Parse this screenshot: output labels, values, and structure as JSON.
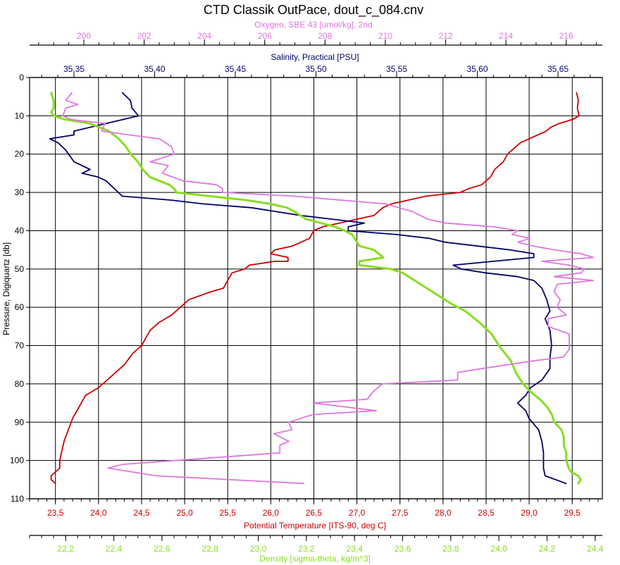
{
  "chart_data": {
    "type": "line",
    "title": "CTD Classik OutPace, dout_c_084.cnv",
    "grid": true,
    "y_axis": {
      "label": "Pressure, Digiquartz [db]",
      "range": [
        0,
        110
      ],
      "inverted": true,
      "ticks": [
        "0",
        "10",
        "20",
        "30",
        "40",
        "50",
        "60",
        "70",
        "80",
        "90",
        "100",
        "110"
      ]
    },
    "axes": {
      "oxygen": {
        "label": "Oxygen, SBE 43 [umol/kg], 2nd",
        "position": "top",
        "range": [
          198.2,
          217.2
        ],
        "ticks": [
          "200",
          "202",
          "204",
          "206",
          "208",
          "210",
          "212",
          "214",
          "216"
        ],
        "color": "#dd77dd"
      },
      "salinity": {
        "label": "Salinity, Practical [PSU]",
        "position": "top",
        "range": [
          35.3225,
          35.6775
        ],
        "ticks": [
          "35,35",
          "35,40",
          "35,45",
          "35,50",
          "35,55",
          "35,60",
          "35,65"
        ],
        "color": "#000066"
      },
      "temperature": {
        "label": "Potential Temperature [ITS-90, deg C]",
        "position": "bottom",
        "range": [
          23.2,
          29.85
        ],
        "ticks": [
          "23,5",
          "24,0",
          "24,5",
          "25,0",
          "25,5",
          "26,0",
          "26,5",
          "27,0",
          "27,5",
          "28,0",
          "28,5",
          "29,0",
          "29,5"
        ],
        "color": "#cc0000"
      },
      "density": {
        "label": "Density [sigma-theta, kg/m^3]",
        "position": "bottom",
        "range": [
          22.05,
          24.43
        ],
        "ticks": [
          "22,2",
          "22,4",
          "22,6",
          "22,8",
          "23,0",
          "23,2",
          "23,4",
          "23,6",
          "23,8",
          "24,0",
          "24,2",
          "24,4"
        ],
        "color": "#88dd22"
      }
    },
    "series": [
      {
        "name": "Potential Temperature",
        "axis": "temperature",
        "color": "#cc0000",
        "points": [
          [
            29.55,
            4
          ],
          [
            29.57,
            6
          ],
          [
            29.56,
            8
          ],
          [
            29.58,
            10
          ],
          [
            29.5,
            11
          ],
          [
            29.35,
            12
          ],
          [
            29.25,
            13
          ],
          [
            29.2,
            14
          ],
          [
            28.9,
            17
          ],
          [
            28.75,
            20
          ],
          [
            28.7,
            22
          ],
          [
            28.6,
            24
          ],
          [
            28.55,
            26
          ],
          [
            28.45,
            28
          ],
          [
            28.3,
            29
          ],
          [
            28.2,
            30
          ],
          [
            27.8,
            31
          ],
          [
            27.6,
            32
          ],
          [
            27.4,
            33
          ],
          [
            27.3,
            34
          ],
          [
            27.25,
            35
          ],
          [
            27.2,
            36
          ],
          [
            27.0,
            37
          ],
          [
            26.8,
            38
          ],
          [
            26.6,
            39
          ],
          [
            26.5,
            40
          ],
          [
            26.45,
            42
          ],
          [
            26.35,
            43
          ],
          [
            26.25,
            44
          ],
          [
            26.05,
            45
          ],
          [
            26.0,
            46
          ],
          [
            26.2,
            47
          ],
          [
            26.2,
            48
          ],
          [
            26.05,
            48
          ],
          [
            25.75,
            49
          ],
          [
            25.7,
            50
          ],
          [
            25.55,
            51
          ],
          [
            25.5,
            53
          ],
          [
            25.45,
            55
          ],
          [
            25.3,
            56
          ],
          [
            25.05,
            58
          ],
          [
            24.95,
            60
          ],
          [
            24.85,
            62
          ],
          [
            24.7,
            64
          ],
          [
            24.6,
            66
          ],
          [
            24.55,
            68
          ],
          [
            24.5,
            70
          ],
          [
            24.4,
            72
          ],
          [
            24.3,
            75
          ],
          [
            24.2,
            77
          ],
          [
            24.1,
            79
          ],
          [
            24.0,
            81
          ],
          [
            23.85,
            83
          ],
          [
            23.8,
            85
          ],
          [
            23.75,
            87
          ],
          [
            23.7,
            89
          ],
          [
            23.65,
            92
          ],
          [
            23.6,
            95
          ],
          [
            23.55,
            100
          ],
          [
            23.55,
            102
          ],
          [
            23.45,
            104
          ],
          [
            23.45,
            105
          ],
          [
            23.5,
            106
          ]
        ]
      },
      {
        "name": "Salinity",
        "axis": "salinity",
        "color": "#000066",
        "points": [
          [
            35.38,
            4
          ],
          [
            35.385,
            6
          ],
          [
            35.386,
            8
          ],
          [
            35.39,
            10
          ],
          [
            35.37,
            12
          ],
          [
            35.35,
            14
          ],
          [
            35.35,
            15
          ],
          [
            35.335,
            16
          ],
          [
            35.34,
            17
          ],
          [
            35.345,
            19
          ],
          [
            35.35,
            22
          ],
          [
            35.36,
            24
          ],
          [
            35.355,
            25
          ],
          [
            35.365,
            26
          ],
          [
            35.37,
            27
          ],
          [
            35.375,
            29
          ],
          [
            35.38,
            31
          ],
          [
            35.41,
            32
          ],
          [
            35.43,
            33
          ],
          [
            35.46,
            34
          ],
          [
            35.49,
            36
          ],
          [
            35.51,
            37
          ],
          [
            35.53,
            38
          ],
          [
            35.52,
            39
          ],
          [
            35.52,
            40
          ],
          [
            35.55,
            41
          ],
          [
            35.57,
            42
          ],
          [
            35.58,
            43
          ],
          [
            35.6,
            44
          ],
          [
            35.62,
            45
          ],
          [
            35.635,
            46
          ],
          [
            35.635,
            47
          ],
          [
            35.61,
            48
          ],
          [
            35.585,
            49
          ],
          [
            35.59,
            50
          ],
          [
            35.605,
            51
          ],
          [
            35.625,
            52
          ],
          [
            35.635,
            53
          ],
          [
            35.64,
            55
          ],
          [
            35.643,
            58
          ],
          [
            35.645,
            61
          ],
          [
            35.642,
            63
          ],
          [
            35.645,
            66
          ],
          [
            35.646,
            70
          ],
          [
            35.645,
            73
          ],
          [
            35.645,
            76
          ],
          [
            35.64,
            79
          ],
          [
            35.633,
            81
          ],
          [
            35.63,
            83
          ],
          [
            35.625,
            85
          ],
          [
            35.63,
            87
          ],
          [
            35.632,
            89
          ],
          [
            35.638,
            92
          ],
          [
            35.64,
            95
          ],
          [
            35.641,
            98
          ],
          [
            35.641,
            100
          ],
          [
            35.641,
            102
          ],
          [
            35.642,
            104
          ],
          [
            35.655,
            106
          ]
        ]
      },
      {
        "name": "Density",
        "axis": "density",
        "color": "#88dd22",
        "points": [
          [
            22.14,
            4
          ],
          [
            22.15,
            6
          ],
          [
            22.15,
            8
          ],
          [
            22.14,
            9
          ],
          [
            22.15,
            10
          ],
          [
            22.2,
            11
          ],
          [
            22.3,
            12
          ],
          [
            22.38,
            14
          ],
          [
            22.42,
            16
          ],
          [
            22.45,
            18
          ],
          [
            22.47,
            20
          ],
          [
            22.5,
            22
          ],
          [
            22.52,
            24
          ],
          [
            22.55,
            26
          ],
          [
            22.59,
            27
          ],
          [
            22.63,
            28
          ],
          [
            22.65,
            29
          ],
          [
            22.66,
            30
          ],
          [
            22.8,
            31
          ],
          [
            22.95,
            32
          ],
          [
            23.05,
            33
          ],
          [
            23.12,
            34
          ],
          [
            23.15,
            35
          ],
          [
            23.2,
            37
          ],
          [
            23.26,
            38
          ],
          [
            23.32,
            39
          ],
          [
            23.36,
            40
          ],
          [
            23.39,
            41
          ],
          [
            23.4,
            42
          ],
          [
            23.42,
            44
          ],
          [
            23.48,
            45
          ],
          [
            23.5,
            46
          ],
          [
            23.52,
            47
          ],
          [
            23.42,
            48
          ],
          [
            23.42,
            49
          ],
          [
            23.55,
            50
          ],
          [
            23.6,
            51
          ],
          [
            23.65,
            53
          ],
          [
            23.7,
            55
          ],
          [
            23.75,
            57
          ],
          [
            23.8,
            59
          ],
          [
            23.86,
            61
          ],
          [
            23.92,
            64
          ],
          [
            23.97,
            67
          ],
          [
            24.0,
            70
          ],
          [
            24.05,
            74
          ],
          [
            24.07,
            77
          ],
          [
            24.1,
            80
          ],
          [
            24.13,
            82
          ],
          [
            24.17,
            84
          ],
          [
            24.2,
            86
          ],
          [
            24.22,
            88
          ],
          [
            24.23,
            90
          ],
          [
            24.26,
            92
          ],
          [
            24.27,
            94
          ],
          [
            24.27,
            96
          ],
          [
            24.28,
            98
          ],
          [
            24.28,
            100
          ],
          [
            24.29,
            102
          ],
          [
            24.3,
            103
          ],
          [
            24.33,
            104
          ],
          [
            24.34,
            105
          ],
          [
            24.33,
            106
          ]
        ]
      },
      {
        "name": "Oxygen",
        "axis": "oxygen",
        "color": "#dd77dd",
        "points": [
          [
            199.6,
            4
          ],
          [
            199.4,
            6
          ],
          [
            199.8,
            7
          ],
          [
            199.4,
            8
          ],
          [
            199.3,
            10
          ],
          [
            199.6,
            11
          ],
          [
            200.7,
            12
          ],
          [
            200.6,
            14
          ],
          [
            201.5,
            15
          ],
          [
            202.5,
            16
          ],
          [
            202.9,
            18
          ],
          [
            203.0,
            20
          ],
          [
            202.2,
            22
          ],
          [
            202.8,
            23
          ],
          [
            202.6,
            25
          ],
          [
            203.3,
            27
          ],
          [
            204.4,
            28
          ],
          [
            204.6,
            29
          ],
          [
            204.6,
            30
          ],
          [
            207.0,
            31
          ],
          [
            208.5,
            32
          ],
          [
            210.0,
            33
          ],
          [
            210.9,
            35
          ],
          [
            211.4,
            37
          ],
          [
            212.0,
            38
          ],
          [
            213.6,
            39
          ],
          [
            214.4,
            40
          ],
          [
            214.2,
            41
          ],
          [
            214.8,
            42
          ],
          [
            214.4,
            43
          ],
          [
            214.9,
            44
          ],
          [
            215.6,
            45
          ],
          [
            216.5,
            46
          ],
          [
            216.9,
            47
          ],
          [
            215.2,
            48
          ],
          [
            216.1,
            49
          ],
          [
            216.6,
            50
          ],
          [
            216.5,
            51
          ],
          [
            215.6,
            52
          ],
          [
            216.9,
            53
          ],
          [
            215.7,
            54
          ],
          [
            215.6,
            56
          ],
          [
            215.8,
            58
          ],
          [
            215.7,
            60
          ],
          [
            216.0,
            62
          ],
          [
            215.4,
            63
          ],
          [
            215.4,
            65
          ],
          [
            216.1,
            67
          ],
          [
            216.1,
            69
          ],
          [
            216.1,
            71
          ],
          [
            215.9,
            73
          ],
          [
            214.9,
            74
          ],
          [
            213.2,
            76
          ],
          [
            212.4,
            77
          ],
          [
            212.4,
            79
          ],
          [
            209.9,
            80
          ],
          [
            209.6,
            82
          ],
          [
            209.4,
            84
          ],
          [
            207.6,
            85
          ],
          [
            209.7,
            87
          ],
          [
            207.6,
            88
          ],
          [
            206.8,
            90
          ],
          [
            206.9,
            92
          ],
          [
            206.3,
            93
          ],
          [
            206.8,
            95
          ],
          [
            206.5,
            96
          ],
          [
            206.5,
            98
          ],
          [
            201.3,
            101
          ],
          [
            200.8,
            102
          ],
          [
            202.4,
            104
          ],
          [
            207.3,
            106
          ]
        ]
      }
    ]
  }
}
